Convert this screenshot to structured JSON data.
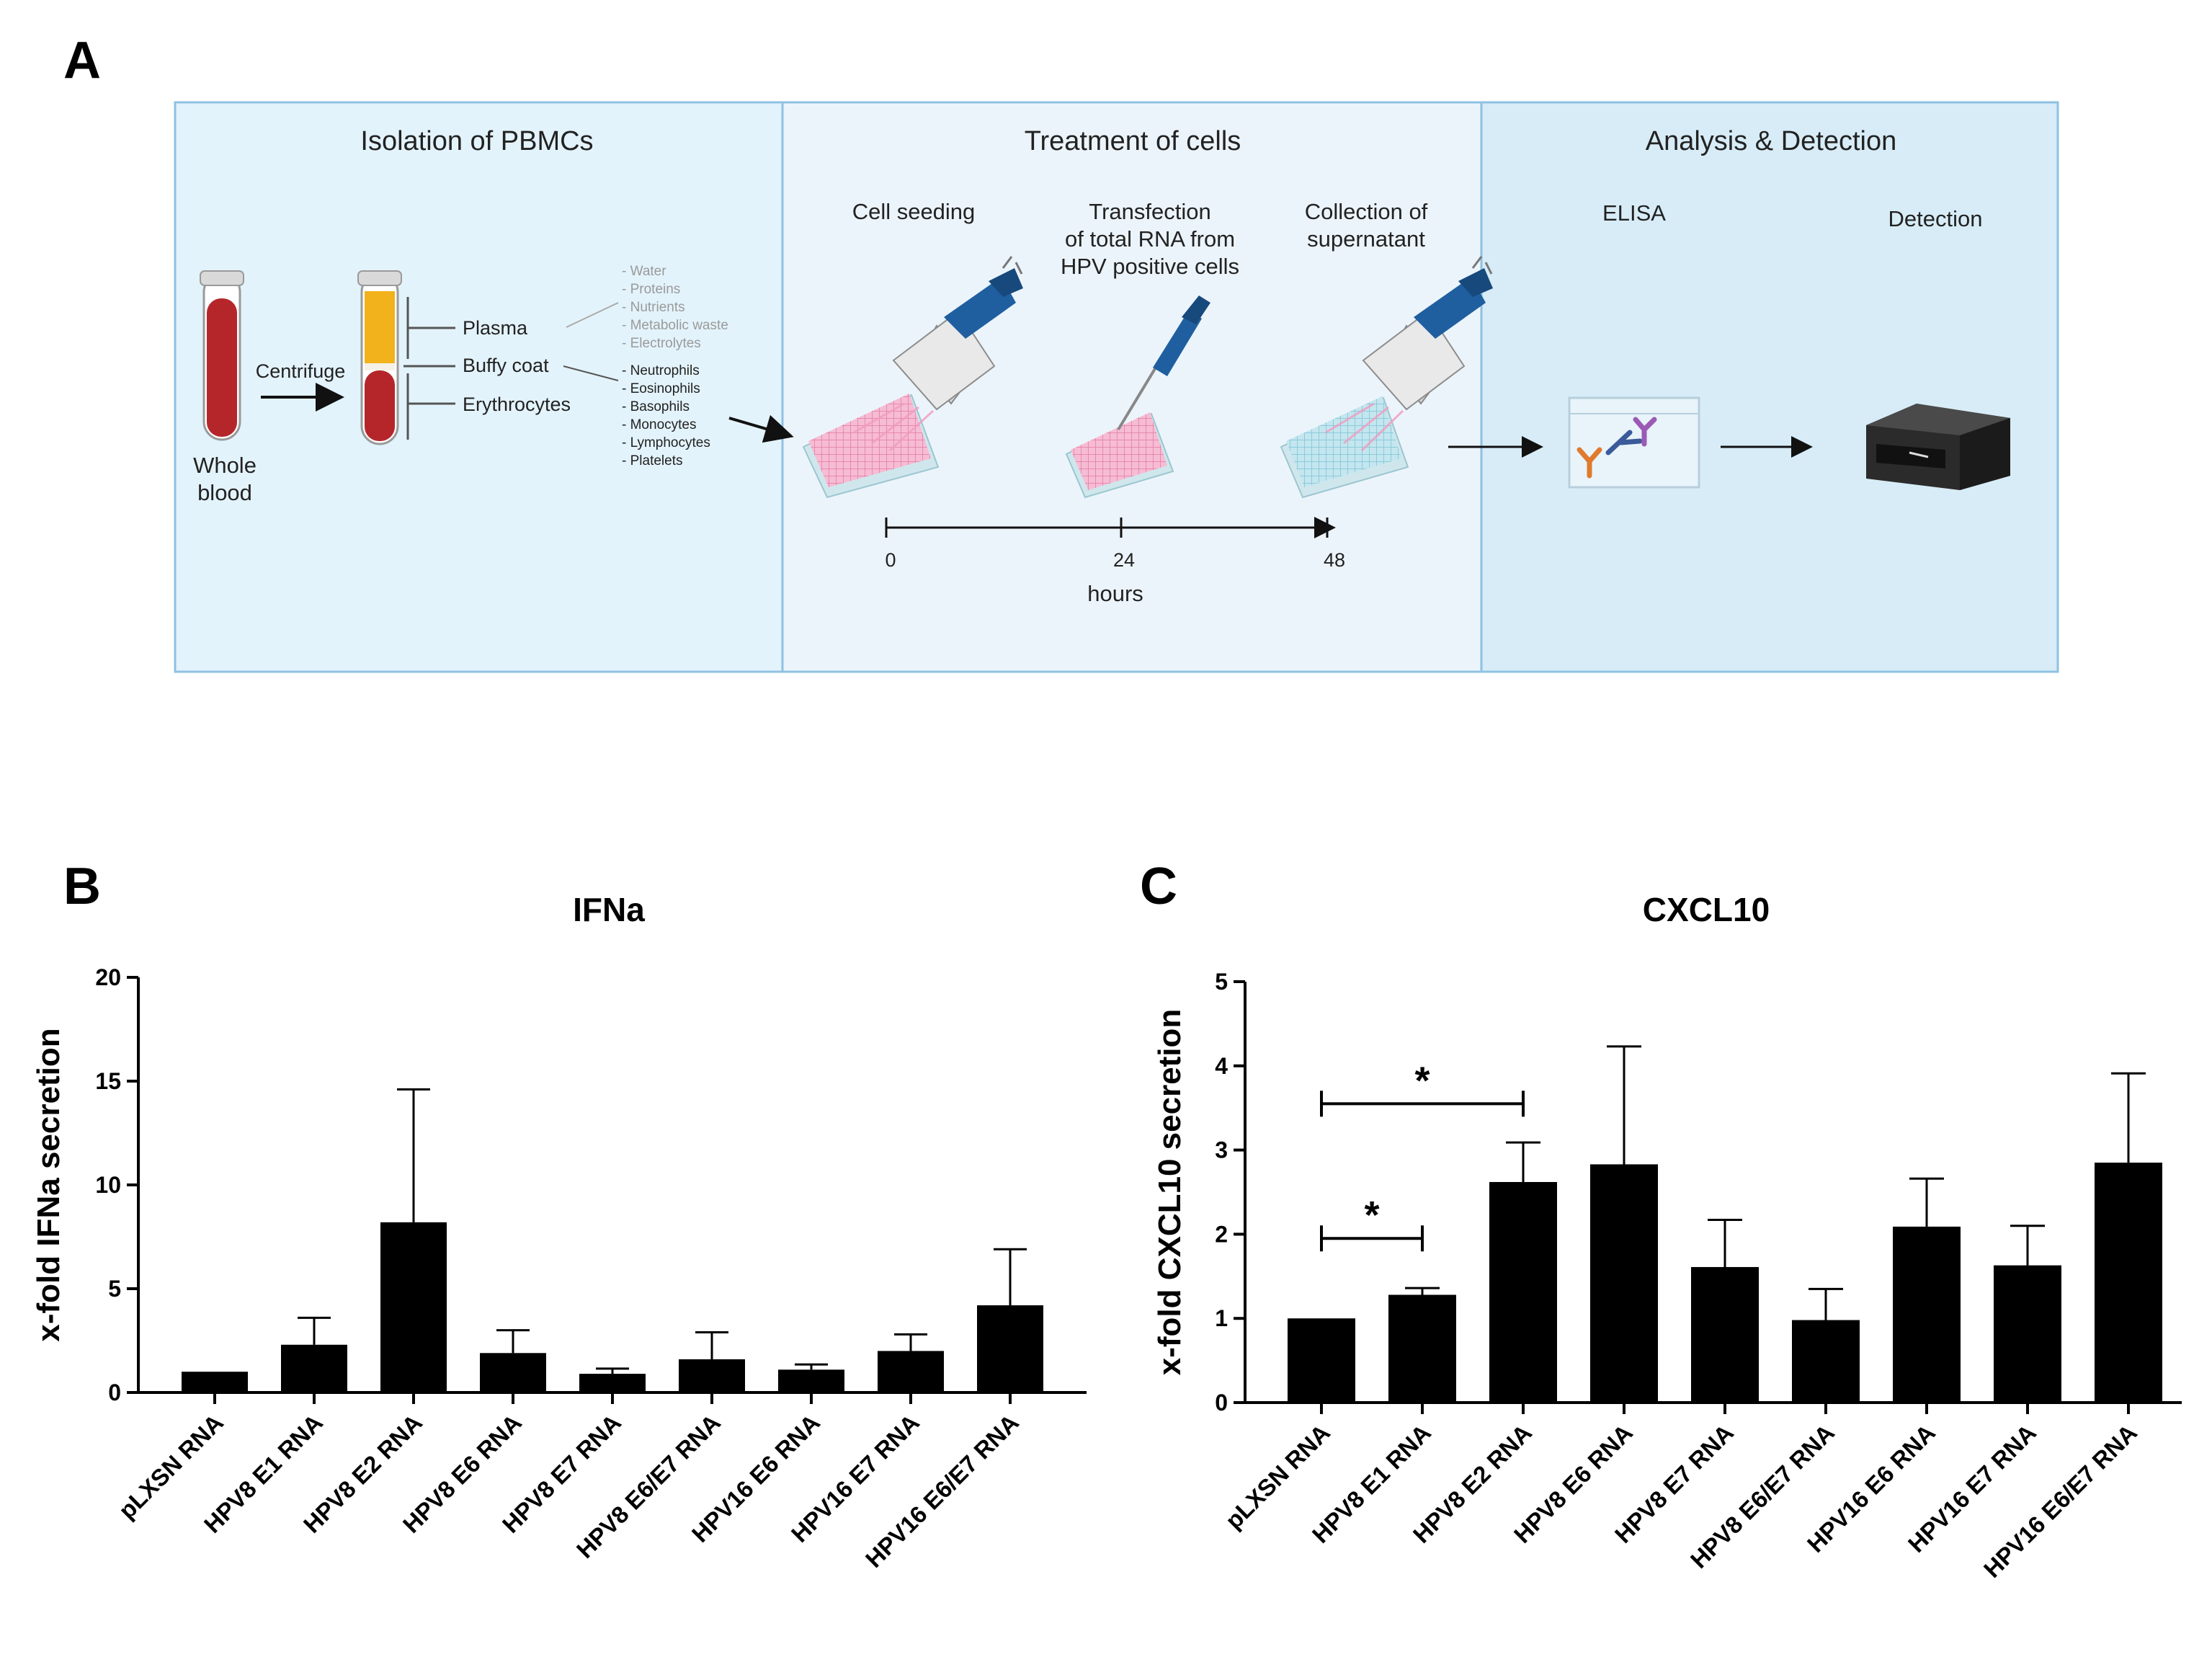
{
  "panels": {
    "a": "A",
    "b": "B",
    "c": "C"
  },
  "schematic": {
    "sections": [
      "Isolation of PBMCs",
      "Treatment of cells",
      "Analysis & Detection"
    ],
    "whole_blood": [
      "Whole",
      "blood"
    ],
    "centrifuge": "Centrifuge",
    "layers": [
      "Plasma",
      "Buffy coat",
      "Erythrocytes"
    ],
    "plasma_components": [
      "- Water",
      "- Proteins",
      "- Nutrients",
      "- Metabolic waste",
      "- Electrolytes"
    ],
    "cell_components": [
      "- Neutrophils",
      "- Eosinophils",
      "- Basophils",
      "- Monocytes",
      "- Lymphocytes",
      "- Platelets"
    ],
    "step_cell_seeding": "Cell seeding",
    "step_transfection": [
      "Transfection",
      "of total RNA from",
      "HPV positive cells"
    ],
    "step_collection": [
      "Collection of",
      "supernatant"
    ],
    "timeline_ticks": [
      "0",
      "24",
      "48"
    ],
    "timeline_unit": "hours",
    "elisa": "ELISA",
    "detection": "Detection",
    "colors": {
      "panel1_bg": "#e3f3fb",
      "panel2_bg": "#ecf4fb",
      "panel3_bg": "#d7ecf7",
      "panel_border": "#8fc1e3",
      "blood": "#b5262b",
      "plasma": "#f2b21c",
      "pipette": "#1f5fa0",
      "plate_pink": "#f6bcd3",
      "plate_blue": "#c4e6ef"
    }
  },
  "chart_data": [
    {
      "type": "bar",
      "title": "IFNa",
      "ylabel": "x-fold IFNa secretion",
      "xlabel": "",
      "categories": [
        "pLXSN RNA",
        "HPV8 E1 RNA",
        "HPV8 E2 RNA",
        "HPV8 E6 RNA",
        "HPV8 E7 RNA",
        "HPV8 E6/E7 RNA",
        "HPV16 E6 RNA",
        "HPV16 E7 RNA",
        "HPV16 E6/E7 RNA"
      ],
      "values": [
        1.0,
        2.3,
        8.2,
        1.9,
        0.9,
        1.6,
        1.1,
        2.0,
        4.2
      ],
      "errors": [
        0.0,
        1.3,
        6.4,
        1.1,
        0.25,
        1.3,
        0.25,
        0.8,
        2.7
      ],
      "ylim": [
        0,
        20
      ],
      "yticks": [
        0,
        5,
        10,
        15,
        20
      ],
      "bar_color": "#000000",
      "grid": false
    },
    {
      "type": "bar",
      "title": "CXCL10",
      "ylabel": "x-fold CXCL10 secretion",
      "xlabel": "",
      "categories": [
        "pLXSN RNA",
        "HPV8 E1 RNA",
        "HPV8 E2 RNA",
        "HPV8 E6 RNA",
        "HPV8 E7 RNA",
        "HPV8 E6/E7 RNA",
        "HPV16 E6 RNA",
        "HPV16 E7 RNA",
        "HPV16 E6/E7 RNA"
      ],
      "values": [
        1.0,
        1.28,
        2.62,
        2.83,
        1.61,
        0.98,
        2.09,
        1.63,
        2.85
      ],
      "errors": [
        0.0,
        0.08,
        0.47,
        1.4,
        0.56,
        0.37,
        0.57,
        0.47,
        1.06
      ],
      "ylim": [
        0,
        5
      ],
      "yticks": [
        0,
        1,
        2,
        3,
        4,
        5
      ],
      "bar_color": "#000000",
      "grid": false,
      "significance": [
        {
          "from": 0,
          "to": 2,
          "label": "*",
          "y": 3.55
        },
        {
          "from": 0,
          "to": 1,
          "label": "*",
          "y": 1.95
        }
      ]
    }
  ]
}
